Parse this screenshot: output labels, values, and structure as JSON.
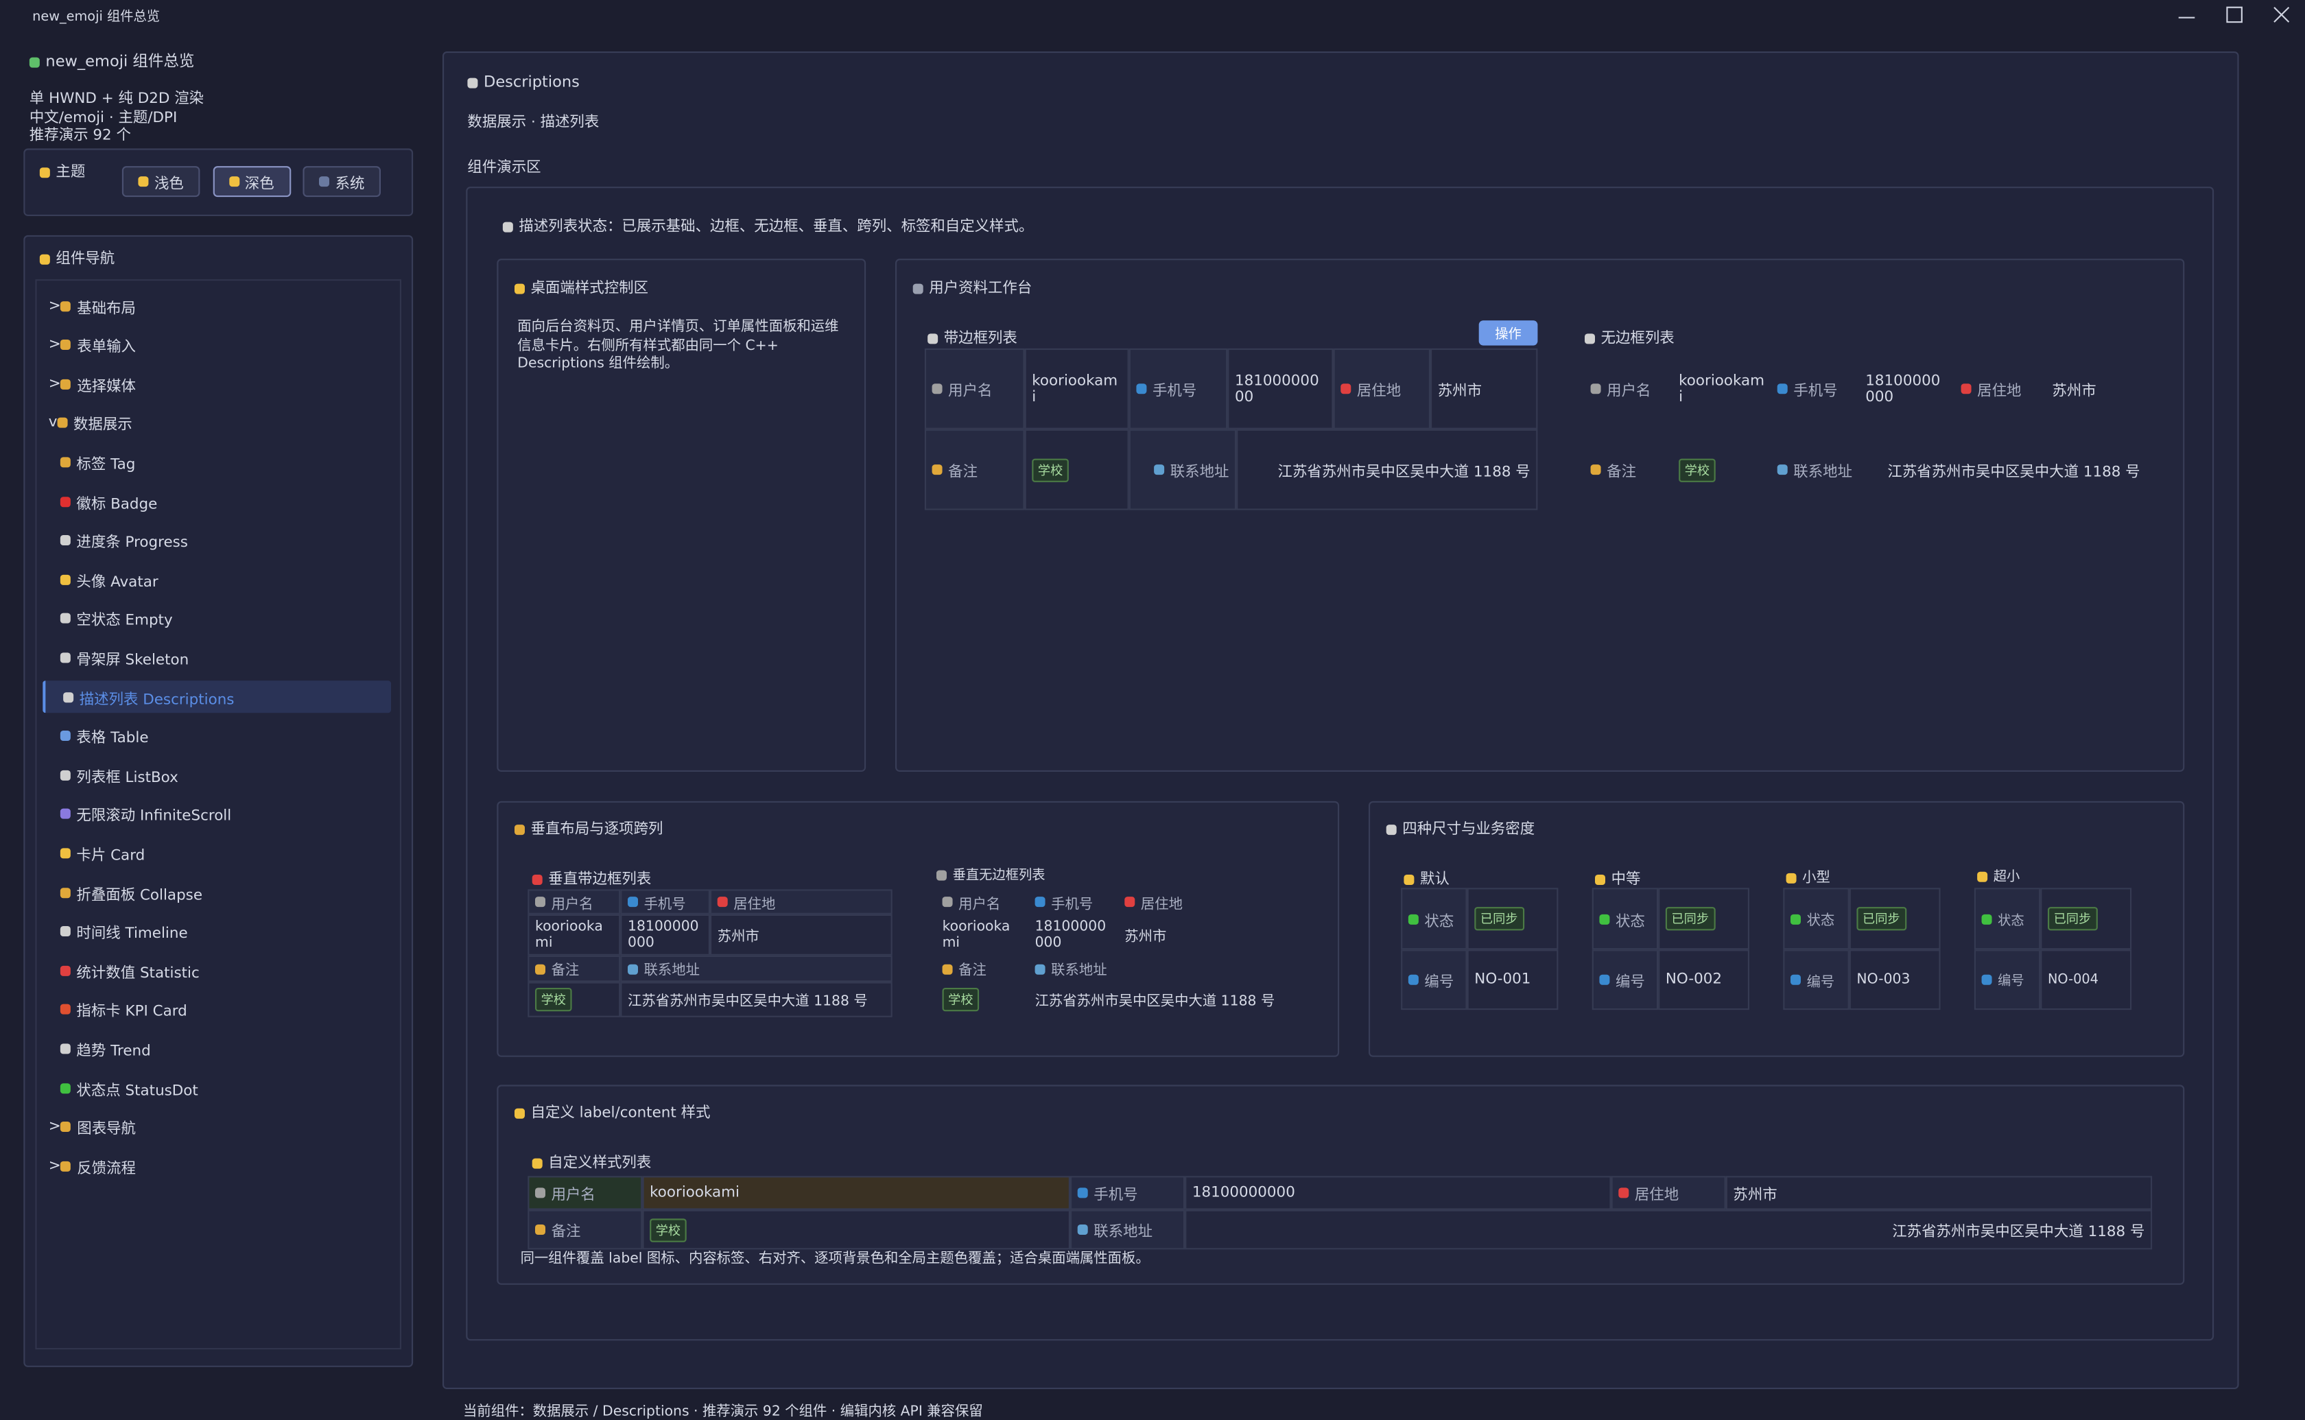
{
  "window": {
    "title": "new_emoji 组件总览"
  },
  "sidebar": {
    "title": "new_emoji 组件总览",
    "info": [
      "单 HWND + 纯 D2D 渲染",
      "中文/emoji · 主题/DPI",
      "推荐演示 92 个"
    ],
    "theme": {
      "label": "主题",
      "options": [
        "浅色",
        "深色",
        "系统"
      ],
      "selected": 1
    },
    "nav": {
      "title": "组件导航",
      "selected": 6,
      "groups": [
        {
          "marker": ">",
          "label": "基础布局"
        },
        {
          "marker": ">",
          "label": "表单输入"
        },
        {
          "marker": ">",
          "label": "选择媒体"
        },
        {
          "marker": "v",
          "label": "数据展示",
          "items": [
            "标签 Tag",
            "徽标 Badge",
            "进度条 Progress",
            "头像 Avatar",
            "空状态 Empty",
            "骨架屏 Skeleton",
            "描述列表 Descriptions",
            "表格 Table",
            "列表框 ListBox",
            "无限滚动 InfiniteScroll",
            "卡片 Card",
            "折叠面板 Collapse",
            "时间线 Timeline",
            "统计数值 Statistic",
            "指标卡 KPI Card",
            "趋势 Trend",
            "状态点 StatusDot"
          ]
        },
        {
          "marker": ">",
          "label": "图表导航"
        },
        {
          "marker": ">",
          "label": "反馈流程"
        }
      ]
    }
  },
  "page": {
    "title": "Descriptions",
    "subtitle": "数据展示 · 描述列表",
    "section": "组件演示区",
    "status": "描述列表状态：已展示基础、边框、无边框、垂直、跨列、标签和自定义样式。",
    "intro": {
      "title": "桌面端样式控制区",
      "text": "面向后台资料页、用户详情页、订单属性面板和运维信息卡片。右侧所有样式都由同一个 C++ Descriptions 组件绘制。"
    },
    "workspace": {
      "title": "用户资料工作台",
      "bordered": {
        "title": "带边框列表",
        "action": "操作"
      },
      "borderless": {
        "title": "无边框列表"
      }
    },
    "vertical": {
      "title": "垂直布局与逐项跨列",
      "bordered": {
        "title": "垂直带边框列表"
      },
      "borderless": {
        "title": "垂直无边框列表"
      }
    },
    "sizes": {
      "title": "四种尺寸与业务密度",
      "labels": [
        "状态",
        "编号"
      ],
      "status": "已同步",
      "lists": [
        {
          "title": "默认",
          "id": "NO-001"
        },
        {
          "title": "中等",
          "id": "NO-002"
        },
        {
          "title": "小型",
          "id": "NO-003"
        },
        {
          "title": "超小",
          "id": "NO-004"
        }
      ]
    },
    "custom": {
      "title": "自定义 label/content 样式",
      "list_title": "自定义样式列表",
      "note": "同一组件覆盖 label 图标、内容标签、右对齐、逐项背景色和全局主题色覆盖；适合桌面端属性面板。"
    },
    "profile": [
      {
        "label": "用户名",
        "value": "kooriookami"
      },
      {
        "label": "手机号",
        "value": "18100000000"
      },
      {
        "label": "居住地",
        "value": "苏州市"
      },
      {
        "label": "备注",
        "value": "学校"
      },
      {
        "label": "联系地址",
        "value": "江苏省苏州市吴中区吴中大道 1188 号"
      }
    ]
  },
  "footer": "当前组件：数据展示 / Descriptions · 推荐演示 92 个组件 · 编辑内核 API 兼容保留"
}
